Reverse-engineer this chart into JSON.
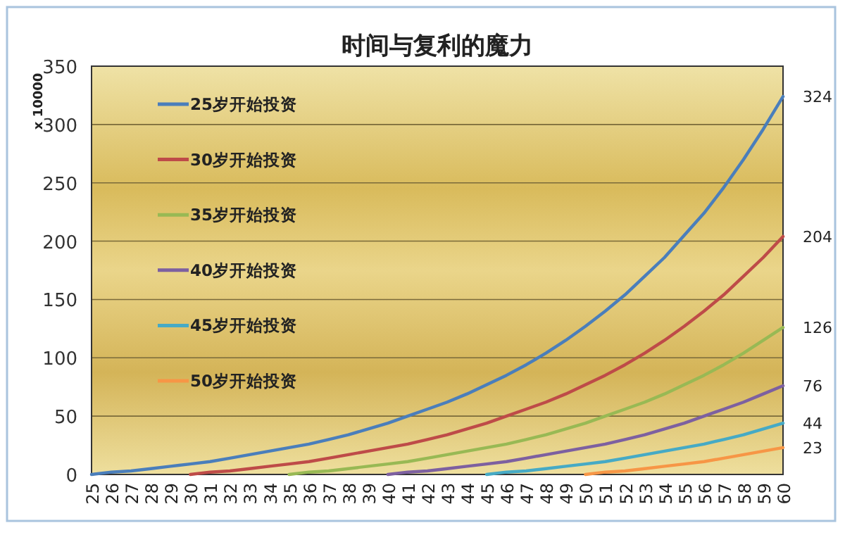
{
  "chart_data": {
    "type": "line",
    "title": "时间与复利的魔力",
    "ylabel": "x 10000",
    "categories": [
      "25",
      "26",
      "27",
      "28",
      "29",
      "30",
      "31",
      "32",
      "33",
      "34",
      "35",
      "36",
      "37",
      "38",
      "39",
      "40",
      "41",
      "42",
      "43",
      "44",
      "45",
      "46",
      "47",
      "48",
      "49",
      "50",
      "51",
      "52",
      "53",
      "54",
      "55",
      "56",
      "57",
      "58",
      "59",
      "60"
    ],
    "series": [
      {
        "name": "25岁开始投资",
        "color": "#4a7ebb",
        "values": [
          0,
          2,
          3,
          5,
          7,
          9,
          11,
          14,
          17,
          20,
          23,
          26,
          30,
          34,
          39,
          44,
          50,
          56,
          62,
          69,
          77,
          85,
          94,
          104,
          115,
          127,
          140,
          154,
          170,
          186,
          205,
          224,
          246,
          270,
          296,
          324
        ],
        "value_labels": [
          null,
          null,
          null,
          null,
          null,
          null,
          null,
          null,
          null,
          null,
          null,
          null,
          null,
          null,
          null,
          null,
          null,
          null,
          null,
          null,
          null,
          null,
          null,
          null,
          null,
          null,
          null,
          null,
          null,
          null,
          null,
          null,
          null,
          null,
          null,
          "324"
        ]
      },
      {
        "name": "30岁开始投资",
        "color": "#be4b48",
        "values": [
          null,
          null,
          null,
          null,
          null,
          0,
          2,
          3,
          5,
          7,
          9,
          11,
          14,
          17,
          20,
          23,
          26,
          30,
          34,
          39,
          44,
          50,
          56,
          62,
          69,
          77,
          85,
          94,
          104,
          115,
          127,
          140,
          154,
          170,
          186,
          204
        ],
        "value_labels": [
          null,
          null,
          null,
          null,
          null,
          null,
          null,
          null,
          null,
          null,
          null,
          null,
          null,
          null,
          null,
          null,
          null,
          null,
          null,
          null,
          null,
          null,
          null,
          null,
          null,
          null,
          null,
          null,
          null,
          null,
          null,
          null,
          null,
          null,
          null,
          "204"
        ]
      },
      {
        "name": "35岁开始投资",
        "color": "#98b954",
        "values": [
          null,
          null,
          null,
          null,
          null,
          null,
          null,
          null,
          null,
          null,
          0,
          2,
          3,
          5,
          7,
          9,
          11,
          14,
          17,
          20,
          23,
          26,
          30,
          34,
          39,
          44,
          50,
          56,
          62,
          69,
          77,
          85,
          94,
          104,
          115,
          126
        ],
        "value_labels": [
          null,
          null,
          null,
          null,
          null,
          null,
          null,
          null,
          null,
          null,
          null,
          null,
          null,
          null,
          null,
          null,
          null,
          null,
          null,
          null,
          null,
          null,
          null,
          null,
          null,
          null,
          null,
          null,
          null,
          null,
          null,
          null,
          null,
          null,
          null,
          "126"
        ]
      },
      {
        "name": "40岁开始投资",
        "color": "#7d60a0",
        "values": [
          null,
          null,
          null,
          null,
          null,
          null,
          null,
          null,
          null,
          null,
          null,
          null,
          null,
          null,
          null,
          0,
          2,
          3,
          5,
          7,
          9,
          11,
          14,
          17,
          20,
          23,
          26,
          30,
          34,
          39,
          44,
          50,
          56,
          62,
          69,
          76
        ],
        "value_labels": [
          null,
          null,
          null,
          null,
          null,
          null,
          null,
          null,
          null,
          null,
          null,
          null,
          null,
          null,
          null,
          null,
          null,
          null,
          null,
          null,
          null,
          null,
          null,
          null,
          null,
          null,
          null,
          null,
          null,
          null,
          null,
          null,
          null,
          null,
          null,
          "76"
        ]
      },
      {
        "name": "45岁开始投资",
        "color": "#46aac5",
        "values": [
          null,
          null,
          null,
          null,
          null,
          null,
          null,
          null,
          null,
          null,
          null,
          null,
          null,
          null,
          null,
          null,
          null,
          null,
          null,
          null,
          0,
          2,
          3,
          5,
          7,
          9,
          11,
          14,
          17,
          20,
          23,
          26,
          30,
          34,
          39,
          44
        ],
        "value_labels": [
          null,
          null,
          null,
          null,
          null,
          null,
          null,
          null,
          null,
          null,
          null,
          null,
          null,
          null,
          null,
          null,
          null,
          null,
          null,
          null,
          null,
          null,
          null,
          null,
          null,
          null,
          null,
          null,
          null,
          null,
          null,
          null,
          null,
          null,
          null,
          "44"
        ]
      },
      {
        "name": "50岁开始投资",
        "color": "#f79646",
        "values": [
          null,
          null,
          null,
          null,
          null,
          null,
          null,
          null,
          null,
          null,
          null,
          null,
          null,
          null,
          null,
          null,
          null,
          null,
          null,
          null,
          null,
          null,
          null,
          null,
          null,
          0,
          2,
          3,
          5,
          7,
          9,
          11,
          14,
          17,
          20,
          23
        ],
        "value_labels": [
          null,
          null,
          null,
          null,
          null,
          null,
          null,
          null,
          null,
          null,
          null,
          null,
          null,
          null,
          null,
          null,
          null,
          null,
          null,
          null,
          null,
          null,
          null,
          null,
          null,
          null,
          null,
          null,
          null,
          null,
          null,
          null,
          null,
          null,
          null,
          "23"
        ]
      }
    ],
    "ylim": [
      0,
      350
    ],
    "yticks": [
      0,
      50,
      100,
      150,
      200,
      250,
      300,
      350
    ],
    "grid": "y",
    "legend": "top left",
    "marker": "none",
    "line_style": "solid"
  }
}
